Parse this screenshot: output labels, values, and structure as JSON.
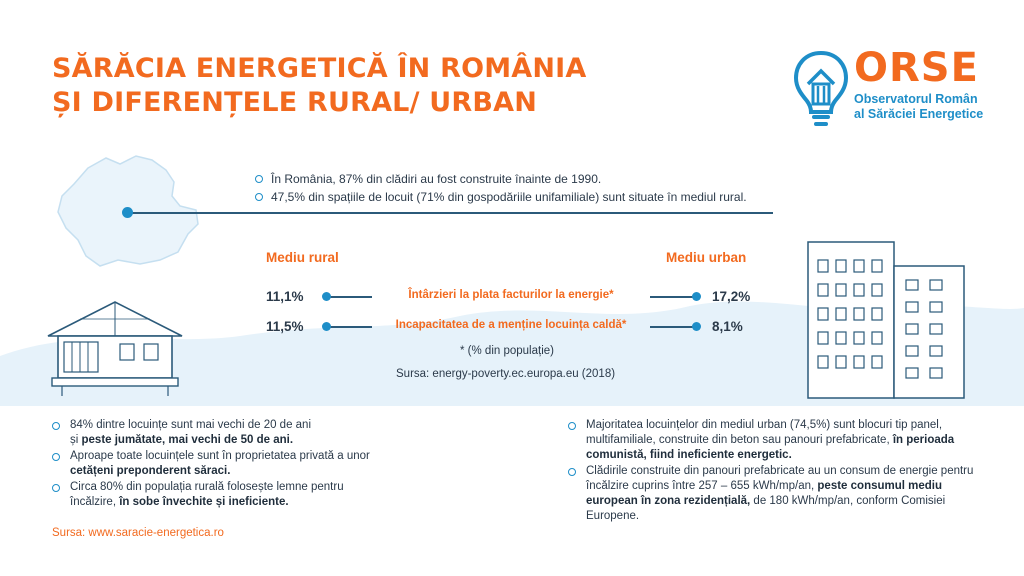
{
  "title": {
    "line1": "SĂRĂCIA ENERGETICĂ ÎN ROMÂNIA",
    "line2": "ȘI DIFERENȚELE RURAL/ URBAN"
  },
  "logo": {
    "name": "ORSE",
    "sub1": "Observatorul Român",
    "sub2": "al Sărăciei Energetice"
  },
  "intro": [
    "În România, 87% din clădiri au fost construite înainte de 1990.",
    "47,5% din spațiile de locuit (71% din gospodăriile unifamiliale) sunt situate în mediul rural."
  ],
  "comparison": {
    "rural_label": "Mediu rural",
    "urban_label": "Mediu urban",
    "rows": [
      {
        "label": "Întârzieri la plata facturilor la energie*",
        "rural": "11,1%",
        "urban": "17,2%"
      },
      {
        "label": "Incapacitatea de a menține locuința caldă*",
        "rural": "11,5%",
        "urban": "8,1%"
      }
    ],
    "footnote": "* (% din populație)",
    "source": "Sursa: energy-poverty.ec.europa.eu (2018)"
  },
  "rural_facts": {
    "f1_a": "84% dintre locuințe sunt mai vechi de 20 de ani",
    "f1_b": "și ",
    "f1_bold": "peste jumătate, mai vechi de 50 de ani.",
    "f2_a": "Aproape toate locuințele sunt în proprietatea privată a unor ",
    "f2_bold": "cetățeni preponderent săraci.",
    "f3_a": "Circa 80% din populația rurală folosește lemne pentru încălzire, ",
    "f3_bold": "în sobe învechite și ineficiente."
  },
  "urban_facts": {
    "f1_a": "Majoritatea locuințelor din mediul urban (74,5%) sunt blocuri tip panel, multifamiliale, construite din beton sau panouri prefabricate, ",
    "f1_bold": "în perioada comunistă, fiind ineficiente energetic.",
    "f2_a": "Clădirile construite din panouri prefabricate au un consum de energie pentru încălzire cuprins între 257 – 655 kWh/mp/an, ",
    "f2_bold": "peste consumul mediu european în zona rezidențială,",
    "f2_c": " de 180 kWh/mp/an, conform Comisiei Europene."
  },
  "source_bottom": "Sursa: www.saracie-energetica.ro",
  "colors": {
    "accent": "#f26a1f",
    "blue": "#1e8ec8",
    "light_blue": "#e6f2fa"
  }
}
